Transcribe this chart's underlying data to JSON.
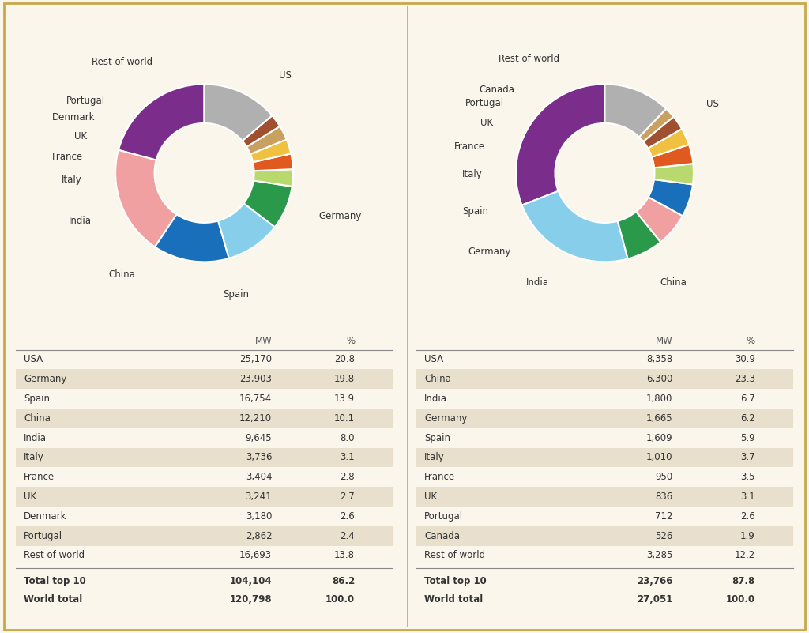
{
  "chart1": {
    "labels": [
      "USA",
      "Germany",
      "Spain",
      "China",
      "India",
      "Italy",
      "France",
      "UK",
      "Denmark",
      "Portugal",
      "Rest of world"
    ],
    "values": [
      25170,
      23903,
      16754,
      12210,
      9645,
      3736,
      3404,
      3241,
      3180,
      2862,
      16693
    ],
    "colors": [
      "#7b2d8b",
      "#f0a0a0",
      "#1a6fba",
      "#87ceeb",
      "#2a9a4a",
      "#b8d96e",
      "#e05a20",
      "#f0c040",
      "#c8a060",
      "#a05030",
      "#b0b0b0"
    ],
    "pie_labels": [
      "US",
      "Germany",
      "Spain",
      "China",
      "India",
      "Italy",
      "France",
      "UK",
      "Denmark",
      "Portugal",
      "Rest of world"
    ],
    "table_rows": [
      [
        "USA",
        "25,170",
        "20.8"
      ],
      [
        "Germany",
        "23,903",
        "19.8"
      ],
      [
        "Spain",
        "16,754",
        "13.9"
      ],
      [
        "China",
        "12,210",
        "10.1"
      ],
      [
        "India",
        "9,645",
        "8.0"
      ],
      [
        "Italy",
        "3,736",
        "3.1"
      ],
      [
        "France",
        "3,404",
        "2.8"
      ],
      [
        "UK",
        "3,241",
        "2.7"
      ],
      [
        "Denmark",
        "3,180",
        "2.6"
      ],
      [
        "Portugal",
        "2,862",
        "2.4"
      ],
      [
        "Rest of world",
        "16,693",
        "13.8"
      ]
    ],
    "total_top10": [
      "Total top 10",
      "104,104",
      "86.2"
    ],
    "world_total": [
      "World total",
      "120,798",
      "100.0"
    ]
  },
  "chart2": {
    "labels": [
      "USA",
      "China",
      "India",
      "Germany",
      "Spain",
      "Italy",
      "France",
      "UK",
      "Portugal",
      "Canada",
      "Rest of world"
    ],
    "values": [
      8358,
      6300,
      1800,
      1665,
      1609,
      1010,
      950,
      836,
      712,
      526,
      3285
    ],
    "colors": [
      "#7b2d8b",
      "#87ceeb",
      "#2a9a4a",
      "#f0a0a0",
      "#1a6fba",
      "#b8d96e",
      "#e05a20",
      "#f0c040",
      "#a05030",
      "#c8a060",
      "#b0b0b0"
    ],
    "pie_labels": [
      "US",
      "China",
      "India",
      "Germany",
      "Spain",
      "Italy",
      "France",
      "UK",
      "Portugal",
      "Canada",
      "Rest of world"
    ],
    "table_rows": [
      [
        "USA",
        "8,358",
        "30.9"
      ],
      [
        "China",
        "6,300",
        "23.3"
      ],
      [
        "India",
        "1,800",
        "6.7"
      ],
      [
        "Germany",
        "1,665",
        "6.2"
      ],
      [
        "Spain",
        "1,609",
        "5.9"
      ],
      [
        "Italy",
        "1,010",
        "3.7"
      ],
      [
        "France",
        "950",
        "3.5"
      ],
      [
        "UK",
        "836",
        "3.1"
      ],
      [
        "Portugal",
        "712",
        "2.6"
      ],
      [
        "Canada",
        "526",
        "1.9"
      ],
      [
        "Rest of world",
        "3,285",
        "12.2"
      ]
    ],
    "total_top10": [
      "Total top 10",
      "23,766",
      "87.8"
    ],
    "world_total": [
      "World total",
      "27,051",
      "100.0"
    ]
  },
  "bg_color": "#faf6ec",
  "border_color": "#c8a84b",
  "table_alt_color": "#e8e0cc",
  "label_fontsize": 8.5,
  "table_fontsize": 8.5
}
